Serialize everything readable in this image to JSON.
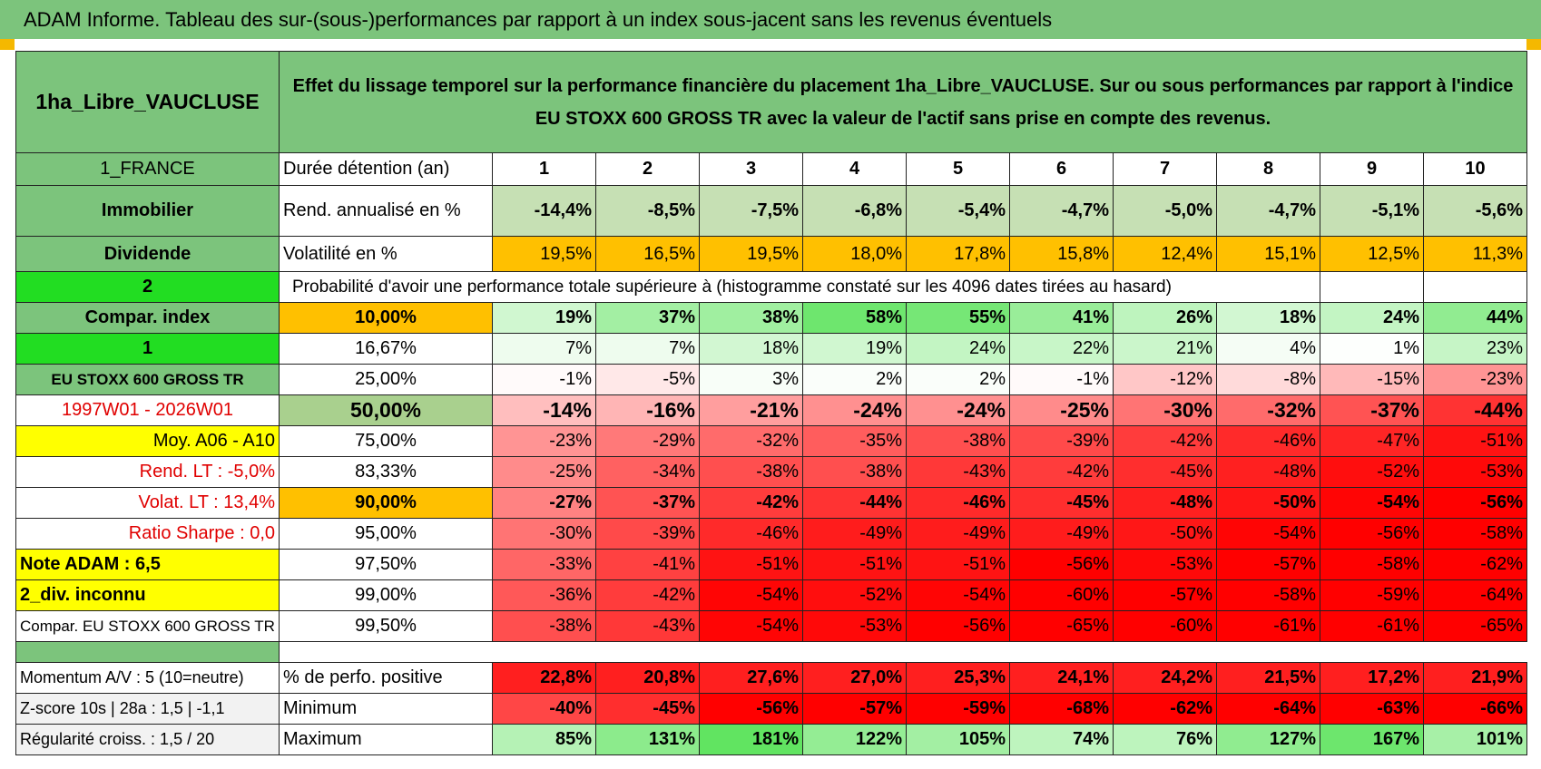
{
  "header": {
    "title": "ADAM Informe. Tableau des sur-(sous-)performances par rapport à un index sous-jacent sans les revenus éventuels"
  },
  "fund": "1ha_Libre_VAUCLUSE",
  "description": "Effet du lissage temporel sur la performance financière du placement 1ha_Libre_VAUCLUSE. Sur ou sous performances par rapport à l'indice EU STOXX 600 GROSS TR avec la valeur de l'actif sans prise en compte des revenus.",
  "table": {
    "rows": [
      {
        "left": "1_FRANCE",
        "mid": "Durée détention (an)",
        "cells": [
          "1",
          "2",
          "3",
          "4",
          "5",
          "6",
          "7",
          "8",
          "9",
          "10"
        ]
      },
      {
        "left": "Immobilier",
        "mid": "Rend. annualisé en %",
        "cells": [
          "-14,4%",
          "-8,5%",
          "-7,5%",
          "-6,8%",
          "-5,4%",
          "-4,7%",
          "-5,0%",
          "-4,7%",
          "-5,1%",
          "-5,6%"
        ]
      },
      {
        "left": "Dividende",
        "mid": "Volatilité en %",
        "cells": [
          "19,5%",
          "16,5%",
          "19,5%",
          "18,0%",
          "17,8%",
          "15,8%",
          "12,4%",
          "15,1%",
          "12,5%",
          "11,3%"
        ]
      },
      {
        "left": "2",
        "mid": "Probabilité d'avoir une performance totale supérieure à (histogramme constaté sur les 4096 dates tirées au hasard)"
      },
      {
        "left": "Compar. index",
        "mid": "10,00%",
        "cells": [
          "19%",
          "37%",
          "38%",
          "58%",
          "55%",
          "41%",
          "26%",
          "18%",
          "24%",
          "44%"
        ]
      },
      {
        "left": "1",
        "mid": "16,67%",
        "cells": [
          "7%",
          "7%",
          "18%",
          "19%",
          "24%",
          "22%",
          "21%",
          "4%",
          "1%",
          "23%"
        ]
      },
      {
        "left": "EU STOXX 600 GROSS TR",
        "mid": "25,00%",
        "cells": [
          "-1%",
          "-5%",
          "3%",
          "2%",
          "2%",
          "-1%",
          "-12%",
          "-8%",
          "-15%",
          "-23%"
        ]
      },
      {
        "left": "1997W01 - 2026W01",
        "mid": "50,00%",
        "cells": [
          "-14%",
          "-16%",
          "-21%",
          "-24%",
          "-24%",
          "-25%",
          "-30%",
          "-32%",
          "-37%",
          "-44%"
        ]
      },
      {
        "left": "Moy. A06 - A10",
        "mid": "75,00%",
        "cells": [
          "-23%",
          "-29%",
          "-32%",
          "-35%",
          "-38%",
          "-39%",
          "-42%",
          "-46%",
          "-47%",
          "-51%"
        ]
      },
      {
        "left": "Rend. LT :    -5,0%",
        "mid": "83,33%",
        "cells": [
          "-25%",
          "-34%",
          "-38%",
          "-38%",
          "-43%",
          "-42%",
          "-45%",
          "-48%",
          "-52%",
          "-53%"
        ]
      },
      {
        "left": "Volat. LT :    13,4%",
        "mid": "90,00%",
        "cells": [
          "-27%",
          "-37%",
          "-42%",
          "-44%",
          "-46%",
          "-45%",
          "-48%",
          "-50%",
          "-54%",
          "-56%"
        ]
      },
      {
        "left": "Ratio Sharpe :     0,0",
        "mid": "95,00%",
        "cells": [
          "-30%",
          "-39%",
          "-46%",
          "-49%",
          "-49%",
          "-49%",
          "-50%",
          "-54%",
          "-56%",
          "-58%"
        ]
      },
      {
        "left": "Note ADAM : 6,5",
        "mid": "97,50%",
        "cells": [
          "-33%",
          "-41%",
          "-51%",
          "-51%",
          "-51%",
          "-56%",
          "-53%",
          "-57%",
          "-58%",
          "-62%"
        ]
      },
      {
        "left": "2_div. inconnu",
        "mid": "99,00%",
        "cells": [
          "-36%",
          "-42%",
          "-54%",
          "-52%",
          "-54%",
          "-60%",
          "-57%",
          "-58%",
          "-59%",
          "-64%"
        ]
      },
      {
        "left": "Compar. EU STOXX 600 GROSS TR",
        "mid": "99,50%",
        "cells": [
          "-38%",
          "-43%",
          "-54%",
          "-53%",
          "-56%",
          "-65%",
          "-60%",
          "-61%",
          "-61%",
          "-65%"
        ]
      }
    ]
  },
  "stats": {
    "rows": [
      {
        "left": "Momentum A/V : 5 (10=neutre)",
        "mid": "% de perfo. positive",
        "cells": [
          "22,8%",
          "20,8%",
          "27,6%",
          "27,0%",
          "25,3%",
          "24,1%",
          "24,2%",
          "21,5%",
          "17,2%",
          "21,9%"
        ]
      },
      {
        "left": "Z-score 10s | 28a : 1,5 | -1,1",
        "mid": "Minimum",
        "cells": [
          "-40%",
          "-45%",
          "-56%",
          "-57%",
          "-59%",
          "-68%",
          "-62%",
          "-64%",
          "-63%",
          "-66%"
        ]
      },
      {
        "left": "Régularité croiss. : 1,5 / 20",
        "mid": "Maximum",
        "cells": [
          "85%",
          "131%",
          "181%",
          "122%",
          "105%",
          "74%",
          "76%",
          "127%",
          "167%",
          "101%"
        ]
      }
    ]
  }
}
